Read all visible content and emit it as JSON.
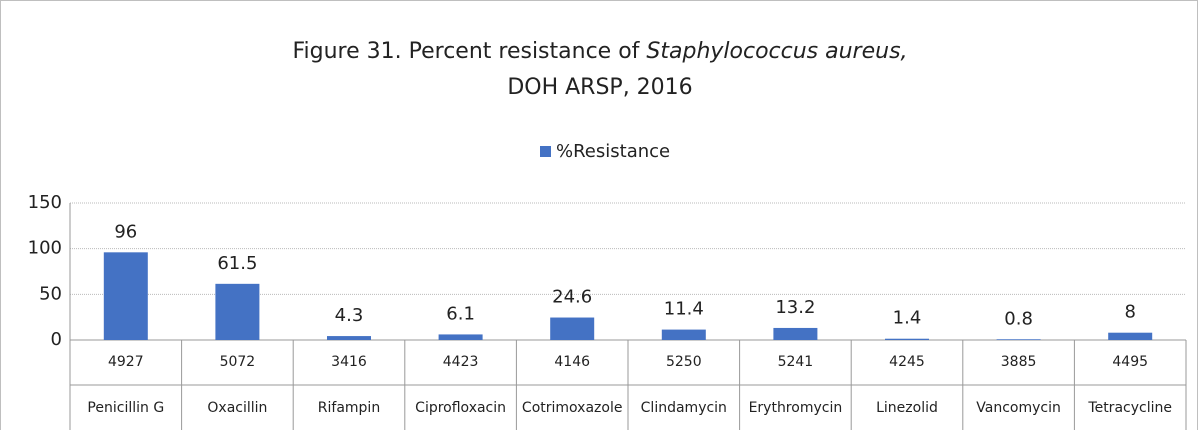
{
  "chart_data": {
    "type": "bar",
    "title": [
      "Figure 31. Percent resistance of",
      "Staphylococcus aureus,"
    ],
    "subtitle": "DOH ARSP, 2016",
    "categories": [
      "Penicillin G",
      "Oxacillin",
      "Rifampin",
      "Ciprofloxacin",
      "Cotrimoxazole",
      "Clindamycin",
      "Erythromycin",
      "Linezolid",
      "Vancomycin",
      "Tetracycline"
    ],
    "category_counts": [
      4927,
      5072,
      3416,
      4423,
      4146,
      5250,
      5241,
      4245,
      3885,
      4495
    ],
    "series": [
      {
        "name": "%Resistance",
        "color": "#4472c4",
        "values": [
          96,
          61.5,
          4.3,
          6.1,
          24.6,
          11.4,
          13.2,
          1.4,
          0.8,
          8
        ]
      }
    ],
    "ylim": [
      0,
      150
    ],
    "yticks": [
      0,
      50,
      100,
      150
    ],
    "grid": true,
    "legend": "top"
  }
}
